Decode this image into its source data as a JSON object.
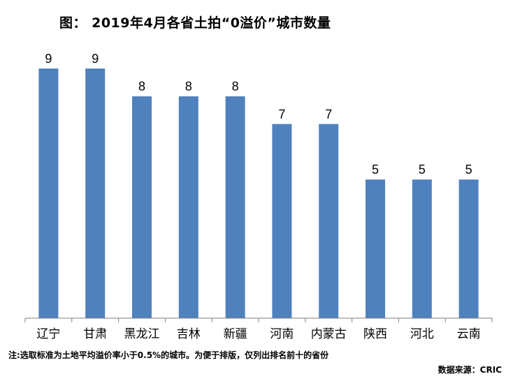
{
  "chart_data": {
    "type": "bar",
    "title": "图： 2019年4月各省土拍“0溢价”城市数量",
    "categories": [
      "辽宁",
      "甘肃",
      "黑龙江",
      "吉林",
      "新疆",
      "河南",
      "内蒙古",
      "陕西",
      "河北",
      "云南"
    ],
    "values": [
      9,
      9,
      8,
      8,
      8,
      7,
      7,
      5,
      5,
      5
    ],
    "ylim": [
      0,
      9
    ],
    "xlabel": "",
    "ylabel": "",
    "grid": false,
    "legend": "none",
    "data_labels": true,
    "bar_color": "#4f81bd",
    "note": "注:选取标准为土地平均溢价率小于0.5%的城市。为便于排版，仅列出排名前十的省份",
    "source": "数据来源：CRIC"
  }
}
